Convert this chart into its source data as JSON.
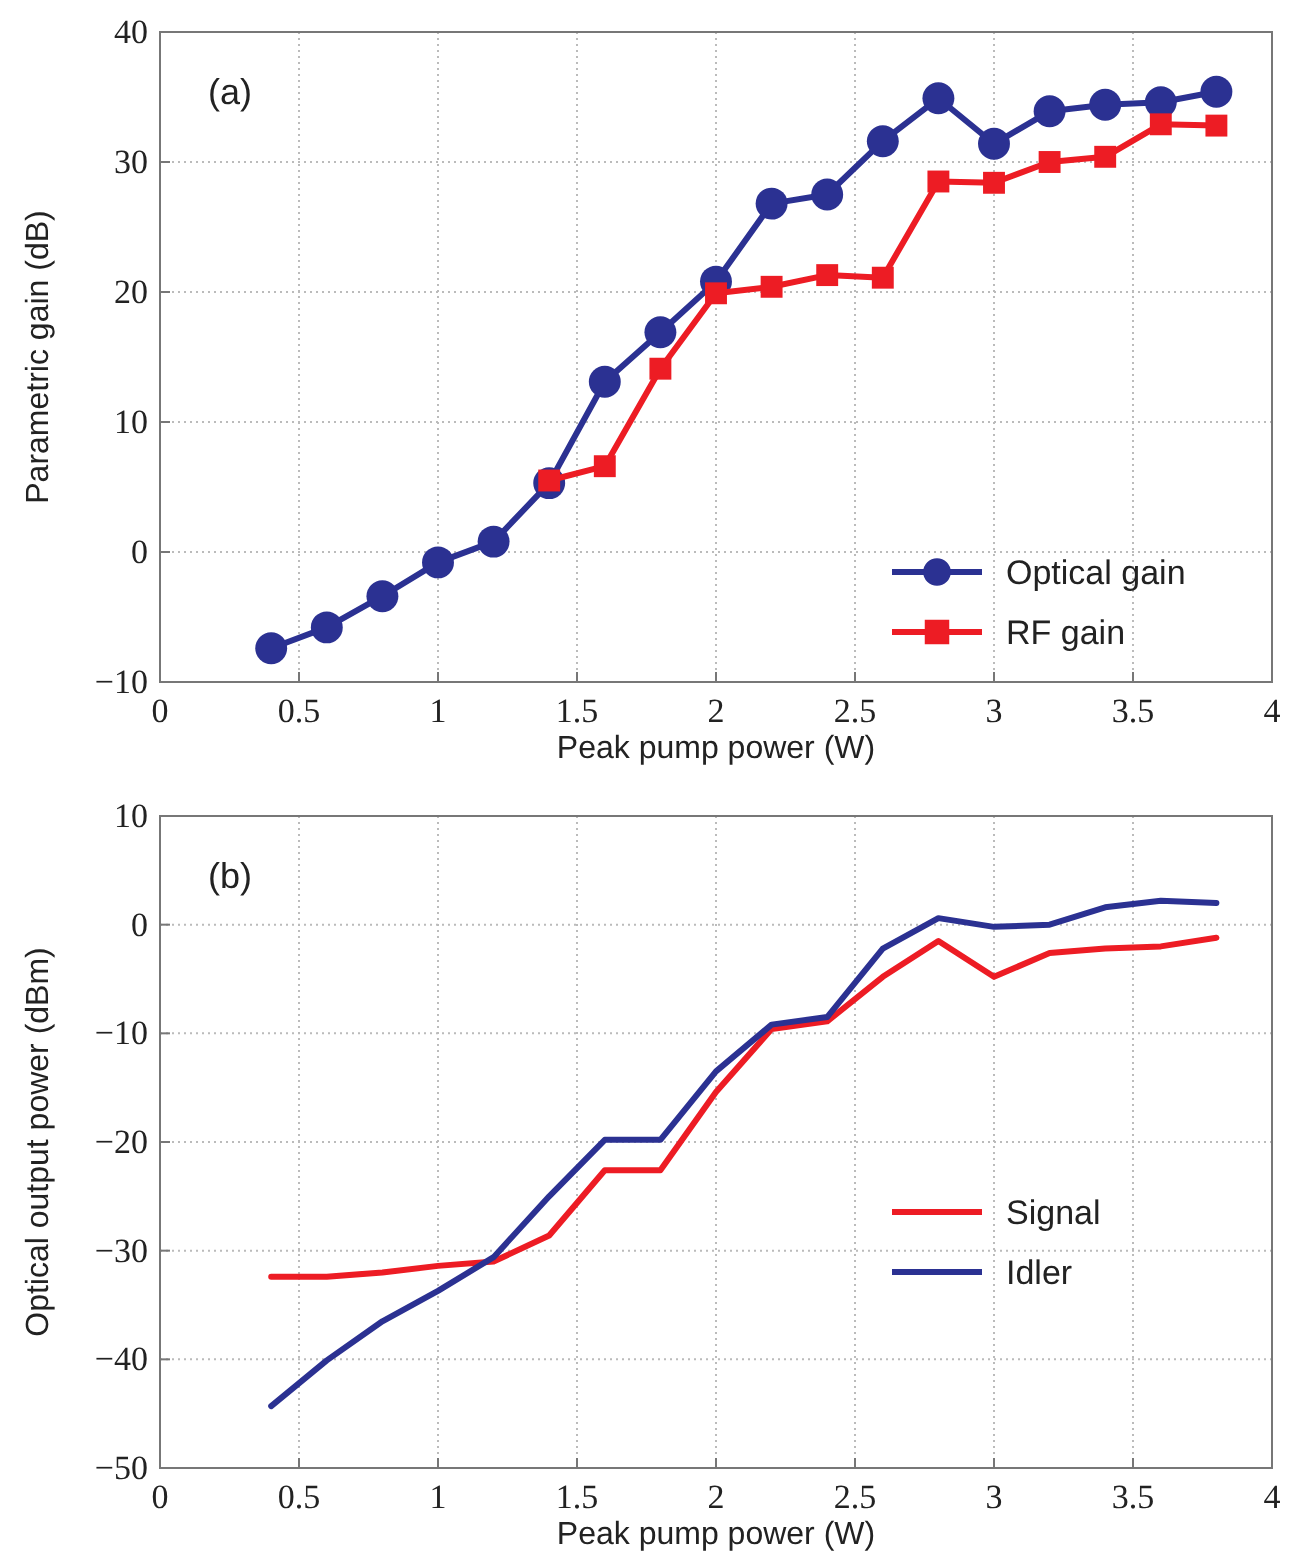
{
  "chart_data": [
    {
      "type": "line",
      "xlabel": "Peak pump power (W)",
      "ylabel": "Parametric gain (dB)",
      "annotations": [
        "(a)"
      ],
      "marker": "circle",
      "grid": true,
      "legend": "bottom right",
      "xlim": [
        0,
        4
      ],
      "xticks": [
        0,
        0.5,
        1,
        1.5,
        2,
        2.5,
        3,
        3.5,
        4
      ],
      "ylim": [
        -10,
        40
      ],
      "yticks": [
        -10,
        0,
        10,
        20,
        30,
        40
      ],
      "series": [
        {
          "name": "Optical gain",
          "color": "#2b3192",
          "x": [
            0.4,
            0.6,
            0.8,
            1.0,
            1.2,
            1.4,
            1.6,
            1.8,
            2.0,
            2.2,
            2.4,
            2.6,
            2.8,
            3.0,
            3.2,
            3.4,
            3.6,
            3.8
          ],
          "values": [
            -7.4,
            -5.8,
            -3.4,
            -0.8,
            0.8,
            5.3,
            13.1,
            16.9,
            20.8,
            26.8,
            27.5,
            31.6,
            34.9,
            31.4,
            33.9,
            34.4,
            34.6,
            35.4
          ]
        },
        {
          "name": "RF gain",
          "color": "#ed1c24",
          "marker": "square",
          "x": [
            1.4,
            1.6,
            1.8,
            2.0,
            2.2,
            2.4,
            2.6,
            2.8,
            3.0,
            3.2,
            3.4,
            3.6,
            3.8
          ],
          "values": [
            5.5,
            6.6,
            14.1,
            19.9,
            20.4,
            21.3,
            21.1,
            28.5,
            28.4,
            30.0,
            30.4,
            32.9,
            32.8
          ]
        }
      ]
    },
    {
      "type": "line",
      "xlabel": "Peak pump power (W)",
      "ylabel": "Optical output power (dBm)",
      "annotations": [
        "(b)"
      ],
      "marker": "none",
      "grid": true,
      "legend": "right",
      "xlim": [
        0,
        4
      ],
      "xticks": [
        0,
        0.5,
        1,
        1.5,
        2,
        2.5,
        3,
        3.5,
        4
      ],
      "ylim": [
        -50,
        10
      ],
      "yticks": [
        -50,
        -40,
        -30,
        -20,
        -10,
        0,
        10
      ],
      "x": [
        0.4,
        0.6,
        0.8,
        1.0,
        1.2,
        1.4,
        1.6,
        1.8,
        2.0,
        2.2,
        2.4,
        2.6,
        2.8,
        3.0,
        3.2,
        3.4,
        3.6,
        3.8
      ],
      "series": [
        {
          "name": "Signal",
          "color": "#ed1c24",
          "values": [
            -32.4,
            -32.4,
            -32.0,
            -31.4,
            -31.0,
            -28.6,
            -22.6,
            -22.6,
            -15.4,
            -9.6,
            -8.9,
            -4.8,
            -1.5,
            -4.8,
            -2.6,
            -2.2,
            -2.0,
            -1.2
          ]
        },
        {
          "name": "Idler",
          "color": "#2b3192",
          "values": [
            -44.3,
            -40.1,
            -36.5,
            -33.7,
            -30.6,
            -25.0,
            -19.8,
            -19.8,
            -13.5,
            -9.2,
            -8.5,
            -2.2,
            0.6,
            -0.2,
            0.0,
            1.6,
            2.2,
            2.0
          ]
        }
      ]
    }
  ]
}
